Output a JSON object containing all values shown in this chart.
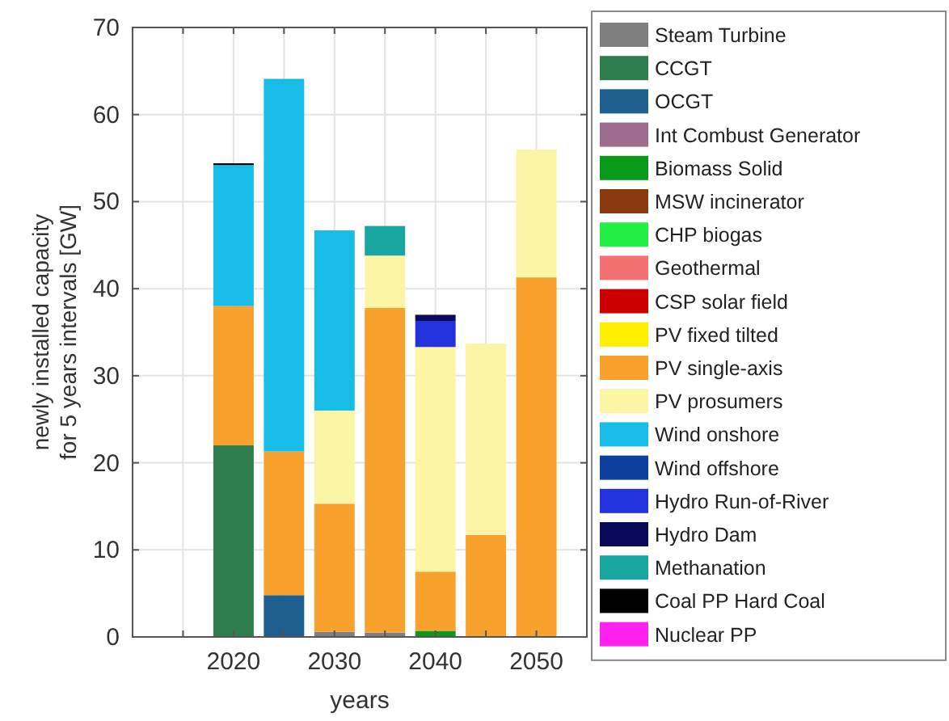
{
  "chart_data": {
    "type": "bar",
    "stacked": true,
    "xlabel": "years",
    "ylabel": "newly installed capacity\nfor 5 years intervals [GW]",
    "x": [
      2020,
      2025,
      2030,
      2035,
      2040,
      2045,
      2050
    ],
    "xlim": [
      2010,
      2055
    ],
    "xticks": [
      {
        "value": 2015,
        "label": null
      },
      2020,
      {
        "value": 2025,
        "label": null
      },
      2030,
      {
        "value": 2035,
        "label": null
      },
      2040,
      {
        "value": 2045,
        "label": null
      },
      2050
    ],
    "ylim": [
      0,
      70
    ],
    "yticks": [
      0,
      10,
      20,
      30,
      40,
      50,
      60,
      70
    ],
    "grid": true,
    "legend": "right",
    "series": [
      {
        "name": "Steam Turbine",
        "color": "#7f7f7f",
        "values": [
          null,
          null,
          0.6,
          0.5,
          null,
          null,
          null
        ]
      },
      {
        "name": "CCGT",
        "color": "#2e7d4f",
        "values": [
          22,
          null,
          null,
          null,
          null,
          null,
          null
        ]
      },
      {
        "name": "OCGT",
        "color": "#1f5f8f",
        "values": [
          null,
          4.8,
          null,
          null,
          null,
          null,
          null
        ]
      },
      {
        "name": "Int Combust Generator",
        "color": "#9c6b8e",
        "values": [
          null,
          null,
          null,
          null,
          null,
          null,
          null
        ]
      },
      {
        "name": "Biomass Solid",
        "color": "#0a9a1a",
        "values": [
          null,
          null,
          null,
          null,
          0.7,
          null,
          null
        ]
      },
      {
        "name": "MSW incinerator",
        "color": "#8b3a0f",
        "values": [
          null,
          null,
          null,
          null,
          null,
          null,
          null
        ]
      },
      {
        "name": "CHP biogas",
        "color": "#22ee44",
        "values": [
          null,
          null,
          null,
          null,
          null,
          null,
          null
        ]
      },
      {
        "name": "Geothermal",
        "color": "#f47171",
        "values": [
          null,
          null,
          null,
          null,
          null,
          null,
          null
        ]
      },
      {
        "name": "CSP solar field",
        "color": "#cc0000",
        "values": [
          null,
          null,
          null,
          null,
          null,
          null,
          null
        ]
      },
      {
        "name": "PV fixed tilted",
        "color": "#ffee00",
        "values": [
          null,
          null,
          null,
          null,
          null,
          null,
          null
        ]
      },
      {
        "name": "PV single-axis",
        "color": "#f8a12c",
        "values": [
          16,
          16.5,
          14.7,
          37.3,
          6.8,
          11.7,
          41.3
        ]
      },
      {
        "name": "PV prosumers",
        "color": "#fdf5a6",
        "values": [
          null,
          null,
          10.7,
          6,
          25.8,
          22,
          14.7
        ]
      },
      {
        "name": "Wind onshore",
        "color": "#17bde6",
        "values": [
          16.2,
          42.8,
          20.7,
          null,
          null,
          null,
          null
        ]
      },
      {
        "name": "Wind offshore",
        "color": "#0c3f9e",
        "values": [
          null,
          null,
          null,
          null,
          null,
          null,
          null
        ]
      },
      {
        "name": "Hydro Run-of-River",
        "color": "#2233dd",
        "values": [
          null,
          null,
          null,
          null,
          3,
          null,
          null
        ]
      },
      {
        "name": "Hydro Dam",
        "color": "#0a0a5a",
        "values": [
          null,
          null,
          null,
          null,
          0.7,
          null,
          null
        ]
      },
      {
        "name": "Methanation",
        "color": "#19a5a0",
        "values": [
          null,
          null,
          null,
          3.4,
          null,
          null,
          null
        ]
      },
      {
        "name": "Coal PP Hard Coal",
        "color": "#000000",
        "values": [
          0.2,
          null,
          null,
          null,
          null,
          null,
          null
        ]
      },
      {
        "name": "Nuclear PP",
        "color": "#ff22ee",
        "values": [
          null,
          null,
          null,
          null,
          null,
          null,
          null
        ]
      }
    ]
  }
}
